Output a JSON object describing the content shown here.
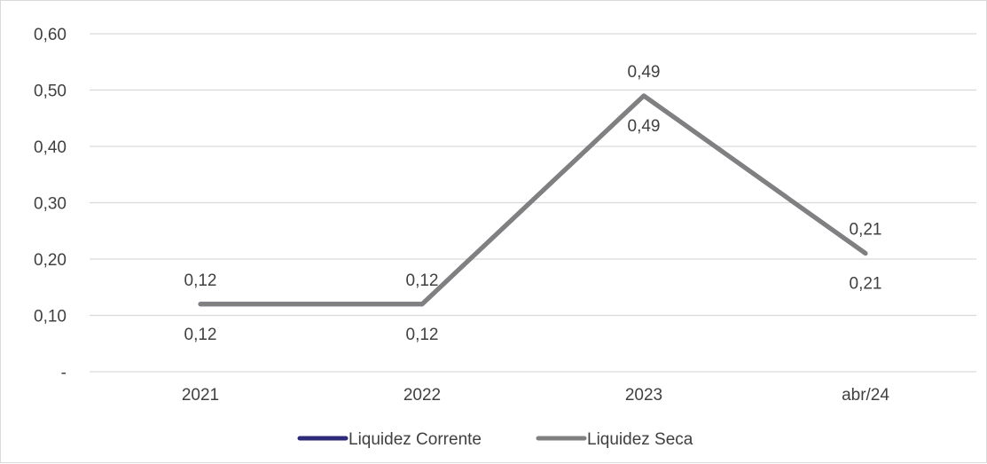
{
  "chart_data": {
    "type": "line",
    "categories": [
      "2021",
      "2022",
      "2023",
      "abr/24"
    ],
    "y_ticks": [
      {
        "value": 0,
        "label": "-"
      },
      {
        "value": 0.1,
        "label": "0,10"
      },
      {
        "value": 0.2,
        "label": "0,20"
      },
      {
        "value": 0.3,
        "label": "0,30"
      },
      {
        "value": 0.4,
        "label": "0,40"
      },
      {
        "value": 0.5,
        "label": "0,50"
      },
      {
        "value": 0.6,
        "label": "0,60"
      }
    ],
    "ylim": [
      0,
      0.6
    ],
    "grid": "horizontal",
    "legend_position": "bottom",
    "series": [
      {
        "name": "Liquidez Corrente",
        "color": "#2e2a7a",
        "values": [
          0.12,
          0.12,
          0.49,
          0.21
        ],
        "labels": [
          "0,12",
          "0,12",
          "0,49",
          "0,21"
        ],
        "label_position": "above"
      },
      {
        "name": "Liquidez Seca",
        "color": "#808080",
        "values": [
          0.12,
          0.12,
          0.49,
          0.21
        ],
        "labels": [
          "0,12",
          "0,12",
          "0,49",
          "0,21"
        ],
        "label_position": "below"
      }
    ]
  }
}
